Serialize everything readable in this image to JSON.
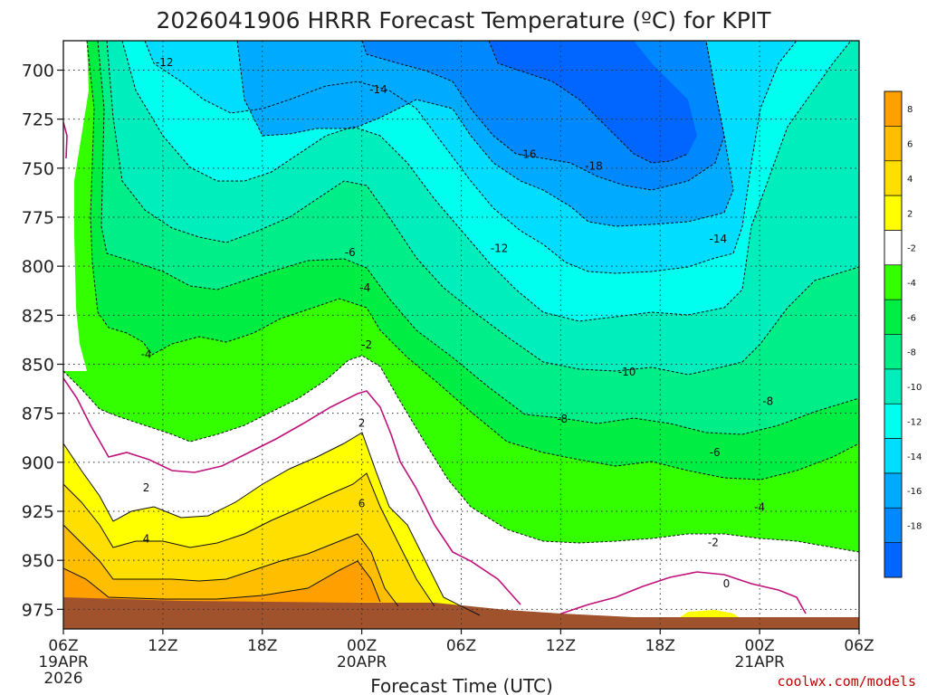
{
  "chart_data": {
    "type": "heatmap",
    "title": "2026041906 HRRR Forecast Temperature (ºC) for KPIT",
    "xlabel": "Forecast Time (UTC)",
    "ylabel": "",
    "credit": "coolwx.com/models",
    "y_ticks": [
      "700",
      "725",
      "750",
      "775",
      "800",
      "825",
      "850",
      "875",
      "900",
      "925",
      "950",
      "975"
    ],
    "x_ticks": [
      {
        "label": "06Z",
        "sub1": "19APR",
        "sub2": "2026"
      },
      {
        "label": "12Z",
        "sub1": "",
        "sub2": ""
      },
      {
        "label": "18Z",
        "sub1": "",
        "sub2": ""
      },
      {
        "label": "00Z",
        "sub1": "20APR",
        "sub2": ""
      },
      {
        "label": "06Z",
        "sub1": "",
        "sub2": ""
      },
      {
        "label": "12Z",
        "sub1": "",
        "sub2": ""
      },
      {
        "label": "18Z",
        "sub1": "",
        "sub2": ""
      },
      {
        "label": "00Z",
        "sub1": "21APR",
        "sub2": ""
      },
      {
        "label": "06Z",
        "sub1": "",
        "sub2": ""
      }
    ],
    "x_range_hours": [
      0,
      48
    ],
    "y_range_hpa": [
      685,
      985
    ],
    "colorbar": {
      "labels": [
        "8",
        "6",
        "4",
        "2",
        "-2",
        "-4",
        "-6",
        "-8",
        "-10",
        "-12",
        "-14",
        "-16",
        "-18"
      ],
      "colors": [
        "#ff9f00",
        "#ffbf00",
        "#ffdf00",
        "#ffff00",
        "#ffffff",
        "#33ff00",
        "#00ee44",
        "#00ee88",
        "#00eebb",
        "#00ffee",
        "#00ddff",
        "#00aaff",
        "#0088ff",
        "#0066ff"
      ]
    },
    "contour_labels": [
      {
        "text": "-12",
        "h": 6.1,
        "p": 696
      },
      {
        "text": "-14",
        "h": 19.0,
        "p": 710
      },
      {
        "text": "-16",
        "h": 28.0,
        "p": 743
      },
      {
        "text": "-18",
        "h": 32.0,
        "p": 749
      },
      {
        "text": "-14",
        "h": 39.5,
        "p": 786
      },
      {
        "text": "-12",
        "h": 26.3,
        "p": 791
      },
      {
        "text": "-6",
        "h": 17.3,
        "p": 793
      },
      {
        "text": "-4",
        "h": 18.2,
        "p": 811
      },
      {
        "text": "-2",
        "h": 18.3,
        "p": 840
      },
      {
        "text": "-4",
        "h": 5.0,
        "p": 845
      },
      {
        "text": "-10",
        "h": 34.0,
        "p": 854
      },
      {
        "text": "-8",
        "h": 30.1,
        "p": 878
      },
      {
        "text": "-8",
        "h": 42.5,
        "p": 869
      },
      {
        "text": "-6",
        "h": 39.3,
        "p": 895
      },
      {
        "text": "2",
        "h": 18.0,
        "p": 880
      },
      {
        "text": "2",
        "h": 5.0,
        "p": 913
      },
      {
        "text": "-4",
        "h": 42.0,
        "p": 923
      },
      {
        "text": "6",
        "h": 18.0,
        "p": 921
      },
      {
        "text": "4",
        "h": 5.0,
        "p": 939
      },
      {
        "text": "-2",
        "h": 39.2,
        "p": 941
      },
      {
        "text": "0",
        "h": 40.0,
        "p": 962
      }
    ]
  }
}
